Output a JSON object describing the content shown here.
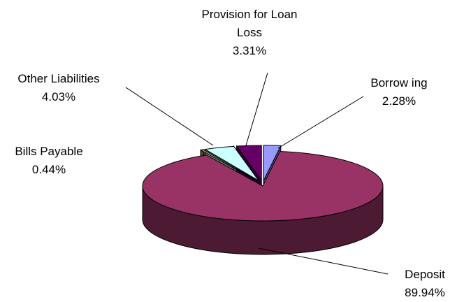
{
  "chart_data": {
    "type": "pie",
    "style": "3d-exploded",
    "title": "",
    "slices": [
      {
        "name": "Borrow ing",
        "value": 2.28,
        "value_label": "2.28%",
        "color": "#9999ff",
        "side_color": "#4d4d80"
      },
      {
        "name": "Deposit",
        "value": 89.94,
        "value_label": "89.94%",
        "color": "#993366",
        "side_color": "#4d1a33"
      },
      {
        "name": "Bills Payable",
        "value": 0.44,
        "value_label": "0.44%",
        "color": "#999966",
        "side_color": "#4d4d33"
      },
      {
        "name": "Other Liabilities",
        "value": 4.03,
        "value_label": "4.03%",
        "color": "#ccffff",
        "side_color": "#668080"
      },
      {
        "name": "Provision for Loan Loss",
        "name_lines": [
          "Provision for Loan",
          "Loss"
        ],
        "value": 3.31,
        "value_label": "3.31%",
        "color": "#660066",
        "side_color": "#330033"
      }
    ],
    "legend": "none",
    "data_labels": "outside-with-leader-lines"
  }
}
